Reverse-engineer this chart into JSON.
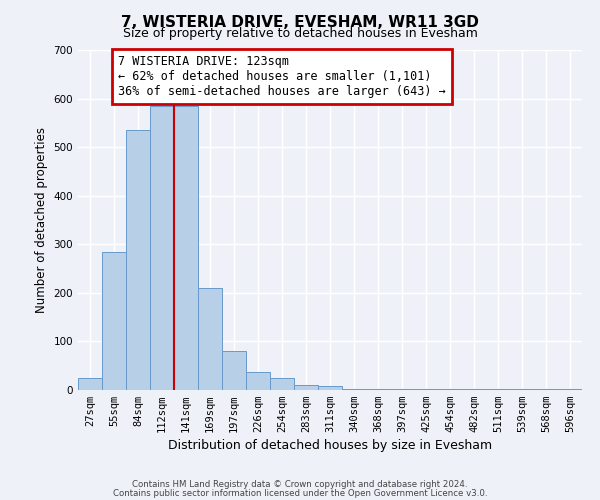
{
  "title": "7, WISTERIA DRIVE, EVESHAM, WR11 3GD",
  "subtitle": "Size of property relative to detached houses in Evesham",
  "xlabel": "Distribution of detached houses by size in Evesham",
  "ylabel": "Number of detached properties",
  "bar_labels": [
    "27sqm",
    "55sqm",
    "84sqm",
    "112sqm",
    "141sqm",
    "169sqm",
    "197sqm",
    "226sqm",
    "254sqm",
    "283sqm",
    "311sqm",
    "340sqm",
    "368sqm",
    "397sqm",
    "425sqm",
    "454sqm",
    "482sqm",
    "511sqm",
    "539sqm",
    "568sqm",
    "596sqm"
  ],
  "bar_values": [
    25,
    285,
    535,
    585,
    585,
    210,
    80,
    38,
    25,
    10,
    8,
    3,
    3,
    3,
    3,
    3,
    3,
    3,
    3,
    3,
    3
  ],
  "bar_color": "#b8cfe8",
  "bar_edge_color": "#6699cc",
  "vline_color": "#cc0000",
  "ylim": [
    0,
    700
  ],
  "yticks": [
    0,
    100,
    200,
    300,
    400,
    500,
    600,
    700
  ],
  "annotation_title": "7 WISTERIA DRIVE: 123sqm",
  "annotation_line1": "← 62% of detached houses are smaller (1,101)",
  "annotation_line2": "36% of semi-detached houses are larger (643) →",
  "annotation_box_color": "#ffffff",
  "annotation_box_edge": "#cc0000",
  "footer_line1": "Contains HM Land Registry data © Crown copyright and database right 2024.",
  "footer_line2": "Contains public sector information licensed under the Open Government Licence v3.0.",
  "background_color": "#eef2f8",
  "grid_color": "#ffffff"
}
